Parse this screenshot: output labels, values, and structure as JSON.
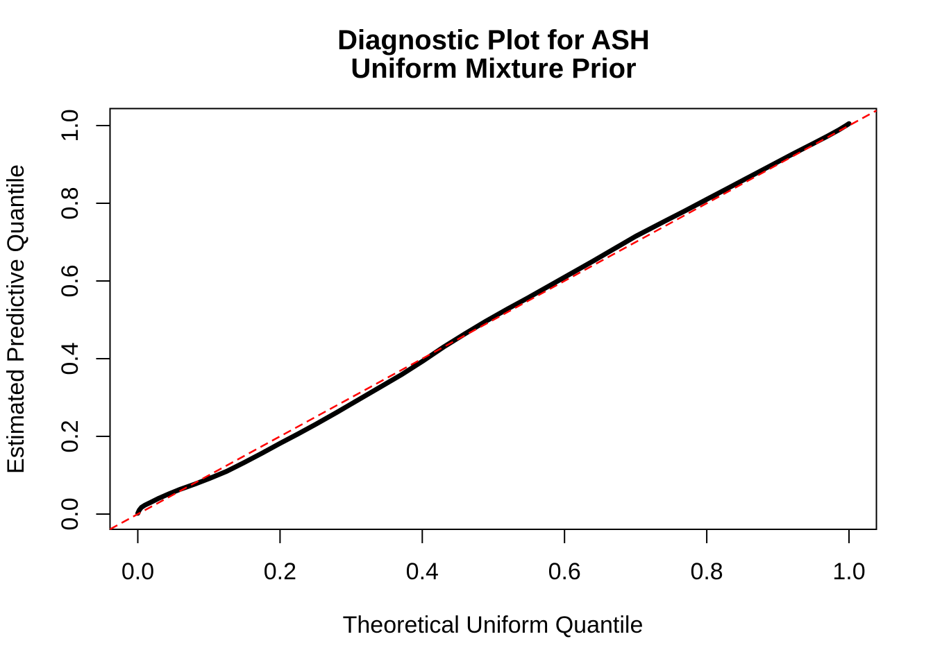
{
  "chart_data": {
    "type": "scatter",
    "title": "Diagnostic Plot for ASH\nUniform Mixture Prior",
    "title_lines": [
      "Diagnostic Plot for ASH",
      "Uniform Mixture Prior"
    ],
    "xlabel": "Theoretical Uniform Quantile",
    "ylabel": "Estimated Predictive Quantile",
    "xlim": [
      -0.04,
      1.04
    ],
    "ylim": [
      -0.04,
      1.04
    ],
    "x_ticks": [
      0.0,
      0.2,
      0.4,
      0.6,
      0.8,
      1.0
    ],
    "y_ticks": [
      0.0,
      0.2,
      0.4,
      0.6,
      0.8,
      1.0
    ],
    "grid": false,
    "legend_position": "none",
    "background_color": "#ffffff",
    "axis_color": "#000000",
    "series": [
      {
        "name": "estimated-predictive-quantiles",
        "style": "thick-point-line",
        "color": "#000000",
        "points": [
          [
            0.0,
            0.002
          ],
          [
            0.002,
            0.01
          ],
          [
            0.005,
            0.017
          ],
          [
            0.01,
            0.023
          ],
          [
            0.018,
            0.03
          ],
          [
            0.03,
            0.041
          ],
          [
            0.045,
            0.053
          ],
          [
            0.06,
            0.064
          ],
          [
            0.08,
            0.077
          ],
          [
            0.1,
            0.091
          ],
          [
            0.125,
            0.11
          ],
          [
            0.15,
            0.133
          ],
          [
            0.175,
            0.157
          ],
          [
            0.2,
            0.182
          ],
          [
            0.225,
            0.206
          ],
          [
            0.25,
            0.231
          ],
          [
            0.28,
            0.262
          ],
          [
            0.31,
            0.294
          ],
          [
            0.34,
            0.326
          ],
          [
            0.37,
            0.358
          ],
          [
            0.4,
            0.393
          ],
          [
            0.43,
            0.43
          ],
          [
            0.46,
            0.464
          ],
          [
            0.49,
            0.497
          ],
          [
            0.52,
            0.528
          ],
          [
            0.55,
            0.558
          ],
          [
            0.58,
            0.589
          ],
          [
            0.61,
            0.62
          ],
          [
            0.64,
            0.651
          ],
          [
            0.67,
            0.683
          ],
          [
            0.7,
            0.715
          ],
          [
            0.72,
            0.734
          ],
          [
            0.74,
            0.753
          ],
          [
            0.77,
            0.781
          ],
          [
            0.8,
            0.81
          ],
          [
            0.83,
            0.839
          ],
          [
            0.86,
            0.868
          ],
          [
            0.89,
            0.897
          ],
          [
            0.92,
            0.926
          ],
          [
            0.95,
            0.954
          ],
          [
            0.97,
            0.973
          ],
          [
            0.985,
            0.988
          ],
          [
            0.995,
            0.999
          ],
          [
            1.0,
            1.005
          ]
        ]
      },
      {
        "name": "reference-line-y-equals-x",
        "style": "dashed-line",
        "color": "#FF0000",
        "points": [
          [
            0,
            0
          ],
          [
            1,
            1
          ]
        ]
      }
    ]
  }
}
